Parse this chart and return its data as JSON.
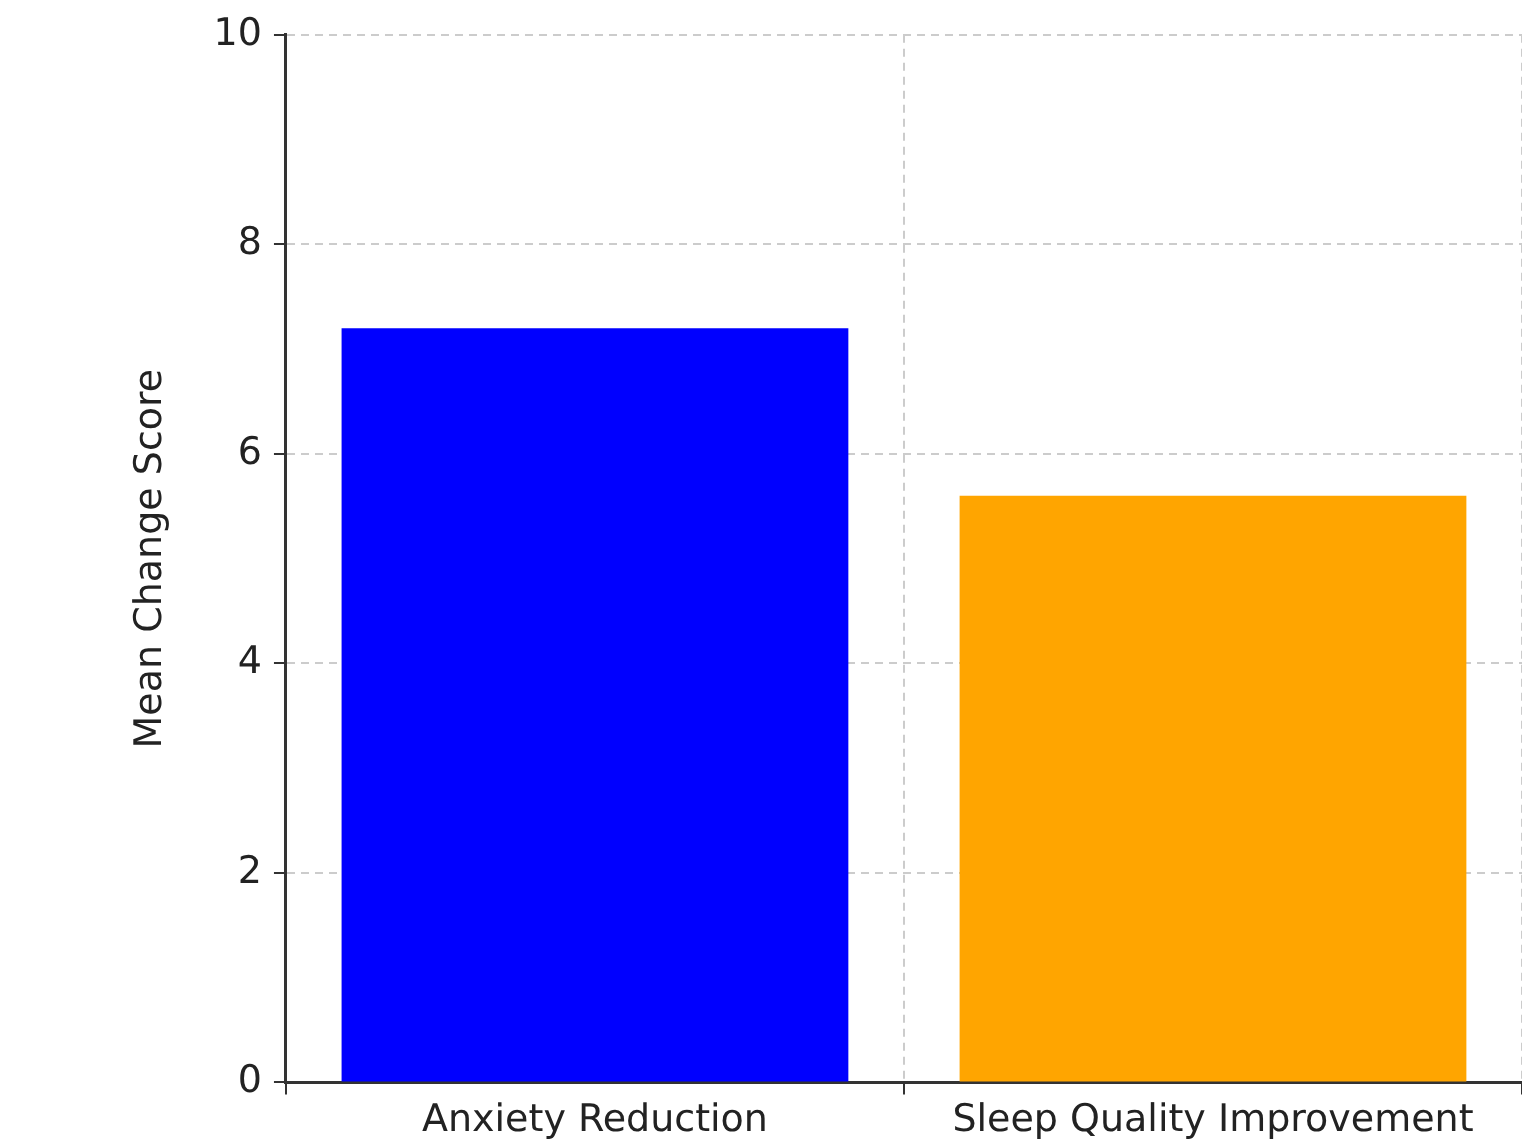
{
  "chart_data": {
    "type": "bar",
    "ylabel": "Mean Change Score",
    "categories": [
      "Anxiety Reduction",
      "Sleep Quality Improvement"
    ],
    "values": [
      7.2,
      5.6
    ],
    "colors": [
      "#0000ff",
      "#ffa500"
    ],
    "ylim": [
      0,
      10
    ],
    "yticks": [
      0,
      2,
      4,
      6,
      8,
      10
    ],
    "grid": true
  }
}
